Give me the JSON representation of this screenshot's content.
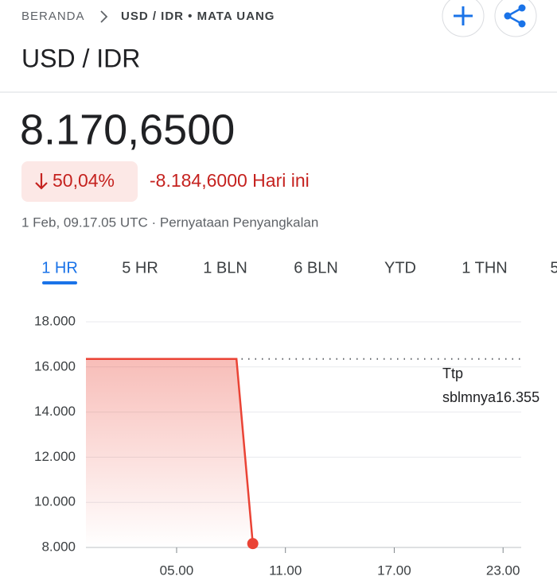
{
  "header": {
    "breadcrumb": [
      "BERANDA",
      "USD / IDR • MATA UANG"
    ],
    "title": "USD / IDR"
  },
  "quote": {
    "price": "8.170,6500",
    "change_pct": "50,04%",
    "change": "-8.184,6000 Hari ini",
    "timestamp": "1 Feb, 09.17.05 UTC · Pernyataan Penyangkalan"
  },
  "tabs": [
    "1 HR",
    "5 HR",
    "1 BLN",
    "6 BLN",
    "YTD",
    "1 THN",
    "5"
  ],
  "chart_data": {
    "type": "line",
    "x": [
      0,
      8.3,
      9.2
    ],
    "values": [
      16355,
      16355,
      8170.65
    ],
    "color": "#ea4335",
    "xlim": [
      0,
      24
    ],
    "ylim": [
      8000,
      18000
    ],
    "xticks": [
      {
        "value": 5,
        "label": "05.00"
      },
      {
        "value": 11,
        "label": "11.00"
      },
      {
        "value": 17,
        "label": "17.00"
      },
      {
        "value": 23,
        "label": "23.00"
      }
    ],
    "yticks": [
      {
        "value": 8000,
        "label": "8.000"
      },
      {
        "value": 10000,
        "label": "10.000"
      },
      {
        "value": 12000,
        "label": "12.000"
      },
      {
        "value": 14000,
        "label": "14.000"
      },
      {
        "value": 16000,
        "label": "16.000"
      },
      {
        "value": 18000,
        "label": "18.000"
      }
    ],
    "grid": true,
    "previous_close": 16355,
    "annotation": [
      "Ttp",
      "sblmnya16.355"
    ]
  }
}
